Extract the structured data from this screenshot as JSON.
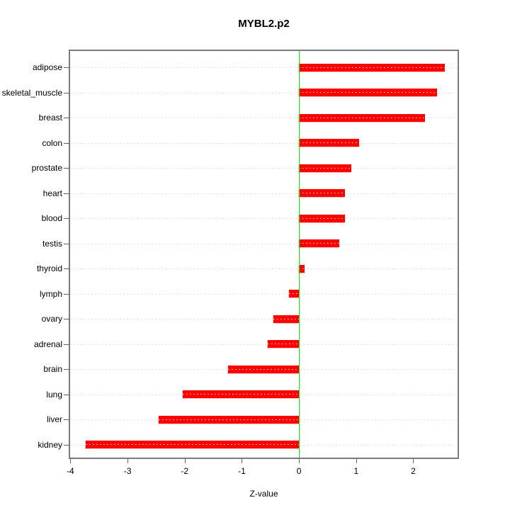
{
  "chart_data": {
    "type": "bar",
    "orientation": "horizontal",
    "title": "MYBL2.p2",
    "xlabel": "Z-value",
    "ylabel": "",
    "categories": [
      "adipose",
      "skeletal_muscle",
      "breast",
      "colon",
      "prostate",
      "heart",
      "blood",
      "testis",
      "thyroid",
      "lymph",
      "ovary",
      "adrenal",
      "brain",
      "lung",
      "liver",
      "kidney"
    ],
    "values": [
      2.55,
      2.42,
      2.2,
      1.05,
      0.91,
      0.8,
      0.81,
      0.7,
      0.1,
      -0.17,
      -0.45,
      -0.55,
      -1.24,
      -2.04,
      -2.45,
      -3.73
    ],
    "xlim": [
      -4.03,
      2.8
    ],
    "xticks": [
      -4,
      -3,
      -2,
      -1,
      0,
      1,
      2
    ],
    "grid": "dotted-horizontal-per-category",
    "legend": "none",
    "colors": {
      "bar": "#ff0000",
      "bar_edge": "#ffc0c0",
      "zero_line": "#00ee00",
      "gridline": "#d8d8d8",
      "box_border": "#7a7a7a",
      "tick": "#606060",
      "text": "#000000",
      "background": "#ffffff"
    }
  }
}
